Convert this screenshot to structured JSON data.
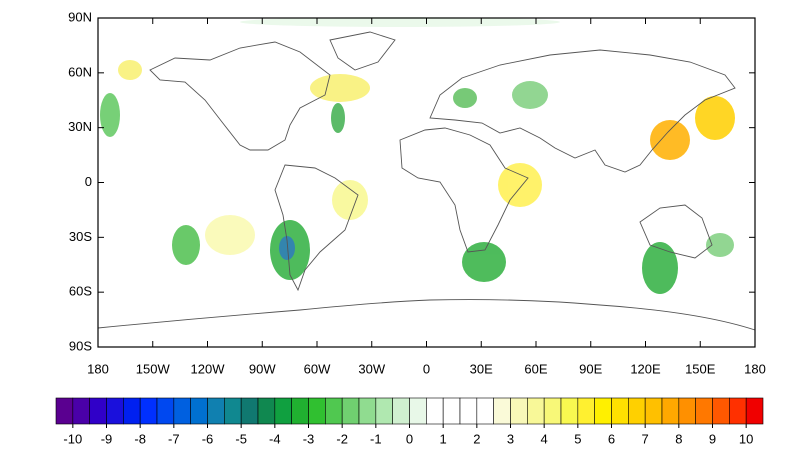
{
  "map": {
    "lonlim": [
      -180,
      180
    ],
    "latlim": [
      -90,
      90
    ],
    "lat_ticks": [
      {
        "value": 90,
        "label": "90N"
      },
      {
        "value": 60,
        "label": "60N"
      },
      {
        "value": 30,
        "label": "30N"
      },
      0,
      {
        "value": -30,
        "label": "30S"
      },
      {
        "value": -60,
        "label": "60S"
      },
      {
        "value": -90,
        "label": "90S"
      }
    ],
    "lon_ticks": [
      {
        "value": -180,
        "label": "180"
      },
      {
        "value": -150,
        "label": "150W"
      },
      {
        "value": -120,
        "label": "120W"
      },
      {
        "value": -90,
        "label": "90W"
      },
      {
        "value": -60,
        "label": "60W"
      },
      {
        "value": -30,
        "label": "30W"
      },
      0,
      {
        "value": 30,
        "label": "30E"
      },
      {
        "value": 60,
        "label": "60E"
      },
      {
        "value": 90,
        "label": "90E"
      },
      {
        "value": 120,
        "label": "120E"
      },
      {
        "value": 150,
        "label": "150E"
      },
      {
        "value": 180,
        "label": "180"
      }
    ]
  },
  "colorbar": {
    "lim": [
      -10.5,
      10.5
    ],
    "ticks": [
      -10,
      -9,
      -8,
      -7,
      -6,
      -5,
      -4,
      -3,
      -2,
      -1,
      0,
      1,
      2,
      3,
      4,
      5,
      6,
      7,
      8,
      9,
      10
    ],
    "colors": [
      "#5a0090",
      "#4a00a8",
      "#3000c8",
      "#1a10dc",
      "#0020f0",
      "#0030ff",
      "#0048f0",
      "#0060e0",
      "#0070d0",
      "#1080b0",
      "#108890",
      "#107870",
      "#108850",
      "#10a040",
      "#20b030",
      "#30c030",
      "#50c850",
      "#70d070",
      "#90dc90",
      "#b0e8b0",
      "#d0f0d0",
      "#e8f8e8",
      "#ffffff",
      "#ffffff",
      "#ffffff",
      "#ffffff",
      "#fafad8",
      "#f8f8b8",
      "#f8f898",
      "#f8f878",
      "#f8f850",
      "#fff030",
      "#fff000",
      "#ffe000",
      "#ffd000",
      "#ffc000",
      "#ffa800",
      "#ff9000",
      "#ff7800",
      "#ff5800",
      "#ff3000",
      "#f00000"
    ]
  }
}
